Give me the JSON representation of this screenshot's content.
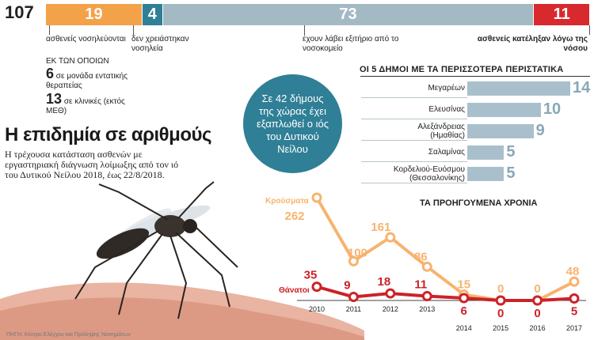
{
  "colors": {
    "orange": "#f4a24a",
    "teal": "#2f7f96",
    "blue_grey": "#a3b9c4",
    "red": "#d8292f",
    "bar_light": "#a9c0cc",
    "line_orange": "#f7b36f",
    "line_red": "#cc2229"
  },
  "top": {
    "total": "107",
    "segments": [
      {
        "label": "19",
        "value": 19,
        "color": "#f4a24a"
      },
      {
        "label": "4",
        "value": 4,
        "color": "#2f7f96"
      },
      {
        "label": "73",
        "value": 73,
        "color": "#a3b9c4"
      },
      {
        "label": "11",
        "value": 11,
        "color": "#d8292f"
      }
    ],
    "ann_hospitalized": "ασθενείς νοσηλεύονται",
    "ann_of_which": "ΕΚ ΤΩΝ ΟΠΟΙΩΝ",
    "icu_num": "6",
    "icu_text": "σε μονάδα εντατικής θεραπείας",
    "clinic_num": "13",
    "clinic_text": "σε κλινικές (εκτός ΜΕΘ)",
    "ann_no_hosp": "δεν χρειάστηκαν νοσηλεία",
    "ann_discharged": "έχουν λάβει εξιτήριο από το νοσοκομείο",
    "ann_died": "ασθενείς κατέληξαν λόγω της νόσου"
  },
  "heading": {
    "title": "Η επιδημία σε αριθμούς",
    "subtitle": "Η τρέχουσα κατάσταση ασθενών με εργαστηριακή διάγνωση λοίμωξης από τον ιό του Δυτικού Νείλου 2018, έως 22/8/2018."
  },
  "circle_text": "Σε 42 δήμους της χώρας έχει εξαπλωθεί ο ιός του Δυτικού Νείλου",
  "municipalities": {
    "title": "ΟΙ 5 ΔΗΜΟΙ ΜΕ ΤΑ ΠΕΡΙΣΣΟΤΕΡΑ ΠΕΡΙΣΤΑΤΙΚΑ",
    "rows": [
      {
        "name": "Μεγαρέων",
        "value": 14,
        "label": "14"
      },
      {
        "name": "Ελευσίνας",
        "value": 10,
        "label": "10"
      },
      {
        "name": "Αλεξάνδρειας (Ημαθίας)",
        "value": 9,
        "label": "9"
      },
      {
        "name": "Σαλαμίνας",
        "value": 5,
        "label": "5"
      },
      {
        "name": "Κορδελιού-Ευόσμου (Θεσσαλονίκης)",
        "value": 5,
        "label": "5"
      }
    ]
  },
  "source_note": "ΠΗΓΗ: Κέντρο Ελέγχου και Πρόληψης Νοσημάτων",
  "chart_data": {
    "type": "line",
    "title": "ΤΑ ΠΡΟΗΓΟΥΜΕΝΑ ΧΡΟΝΙΑ",
    "x": [
      "2010",
      "2011",
      "2012",
      "2013",
      "2014",
      "2015",
      "2016",
      "2017"
    ],
    "series": [
      {
        "name": "Κρούσματα",
        "values": [
          262,
          100,
          161,
          86,
          15,
          0,
          0,
          48
        ],
        "labels": [
          "262",
          "100",
          "161",
          "86",
          "15",
          "0",
          "0",
          "48"
        ],
        "color": "#f7b36f"
      },
      {
        "name": "Θάνατοι",
        "values": [
          35,
          9,
          18,
          11,
          6,
          0,
          0,
          5
        ],
        "labels": [
          "35",
          "9",
          "18",
          "11",
          "6",
          "0",
          "0",
          "5"
        ],
        "color": "#cc2229"
      }
    ],
    "ylim": [
      0,
      262
    ]
  }
}
